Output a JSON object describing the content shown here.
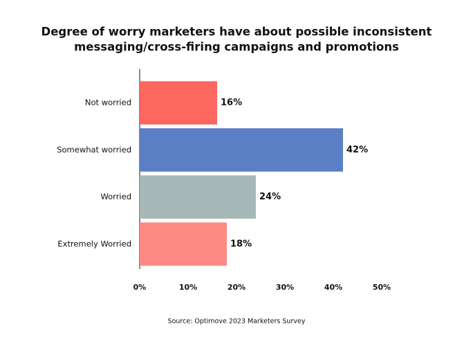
{
  "chart_data": {
    "type": "bar",
    "orientation": "horizontal",
    "title": [
      "Degree of worry marketers have about possible inconsistent",
      "messaging/cross-firing campaigns and promotions"
    ],
    "categories": [
      "Not worried",
      "Somewhat worried",
      "Worried",
      "Extremely Worried"
    ],
    "values": [
      16,
      42,
      24,
      18
    ],
    "value_labels": [
      "16%",
      "42%",
      "24%",
      "18%"
    ],
    "colors": [
      "#fe6660",
      "#5b7fc4",
      "#a7b8b8",
      "#fe8a86"
    ],
    "xlim": [
      0,
      50
    ],
    "xticks": [
      {
        "value": 0,
        "label": "0%"
      },
      {
        "value": 10,
        "label": "10%"
      },
      {
        "value": 20,
        "label": "20%"
      },
      {
        "value": 30,
        "label": "30%"
      },
      {
        "value": 40,
        "label": "40%"
      },
      {
        "value": 50,
        "label": "50%"
      }
    ],
    "grid": false,
    "source": "Source: Optimove 2023 Marketers Survey"
  }
}
